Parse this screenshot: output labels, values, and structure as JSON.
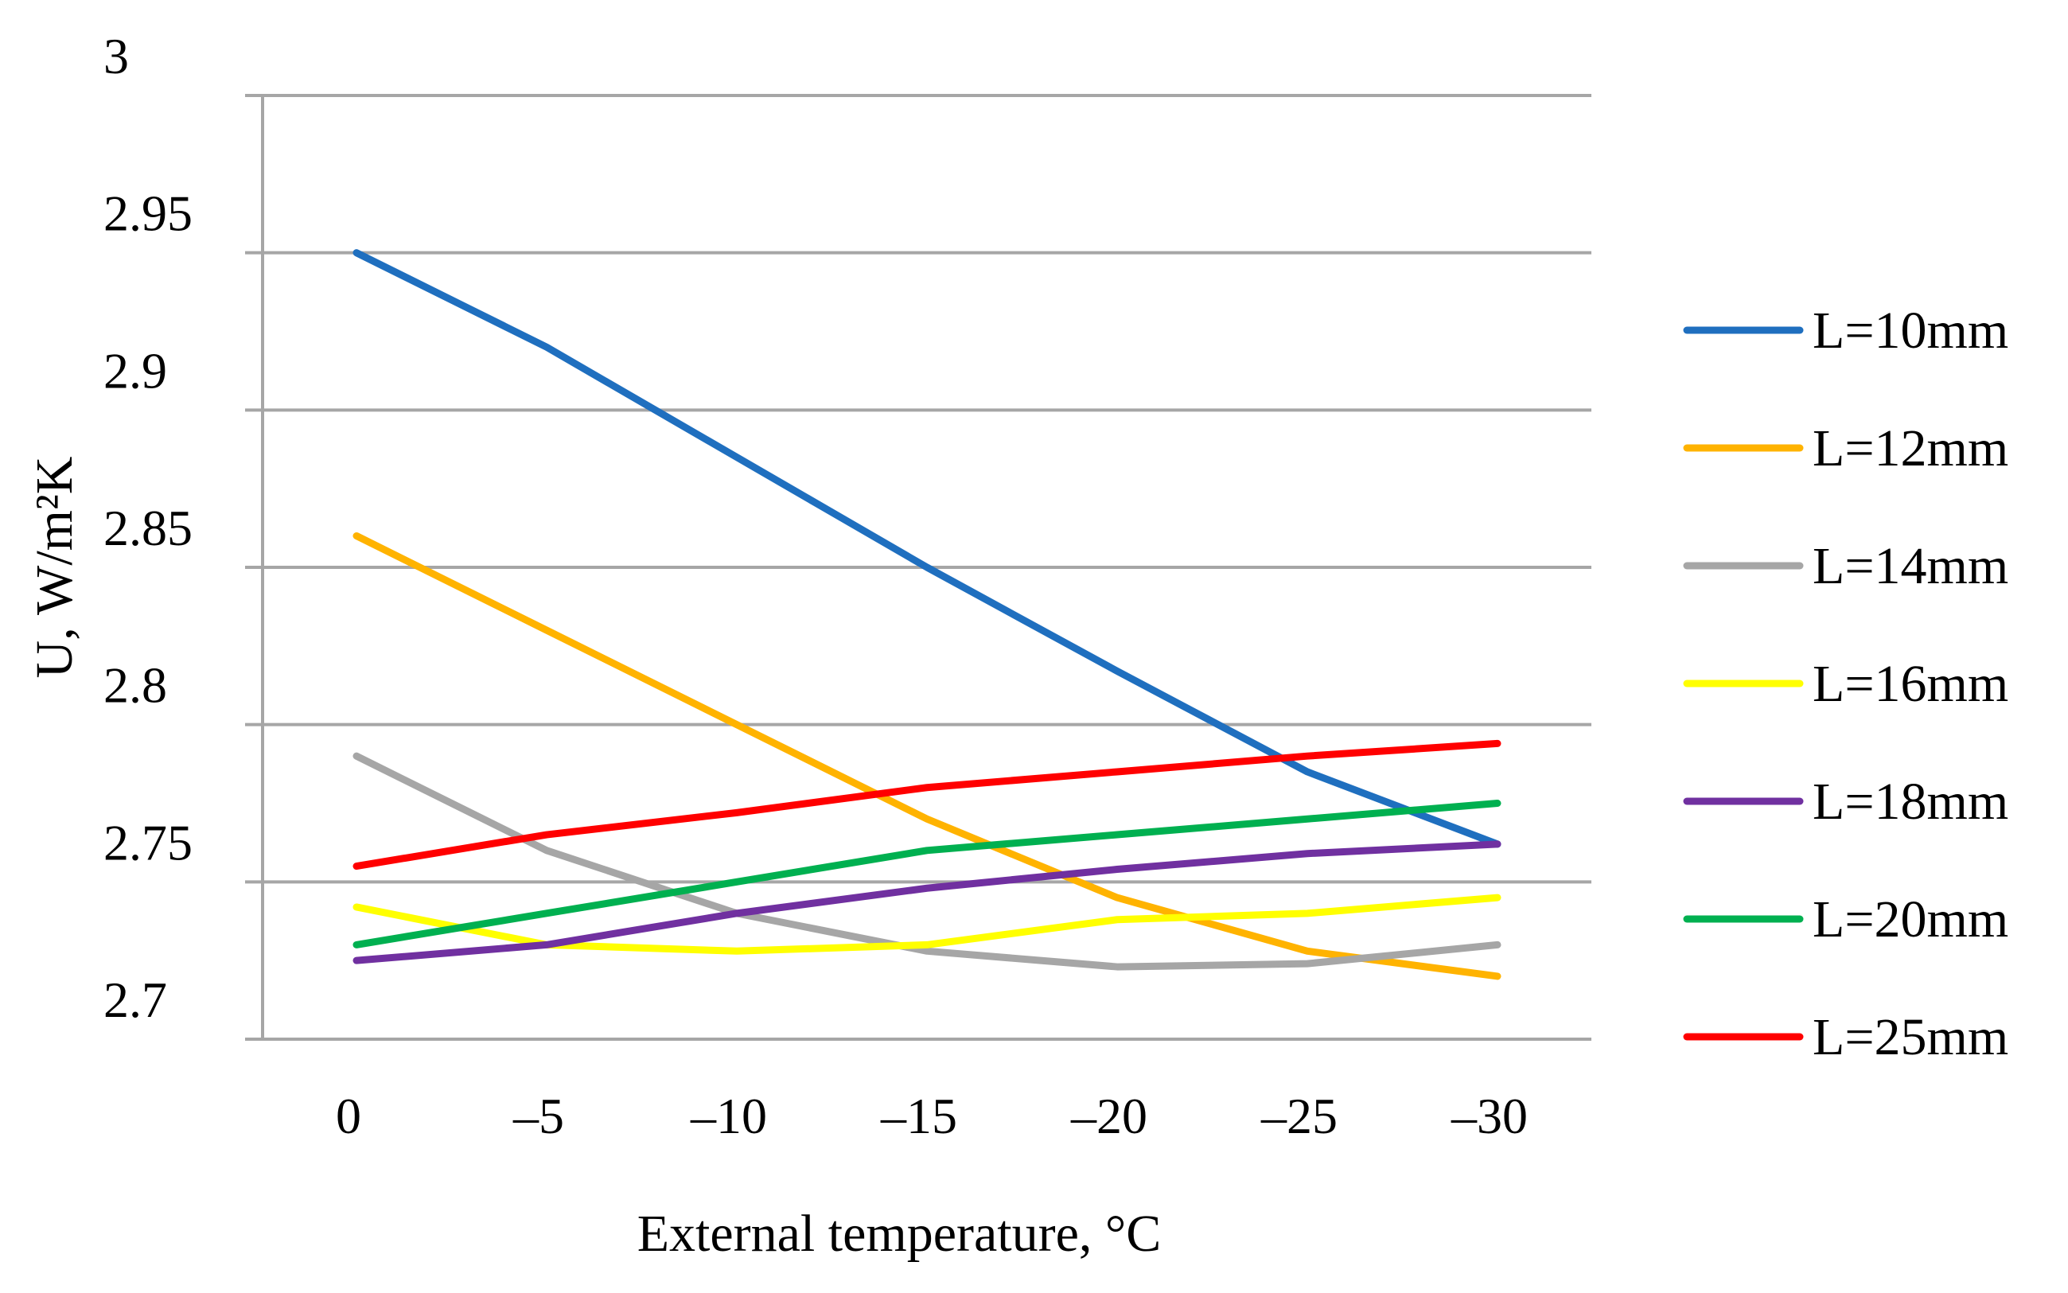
{
  "chart_data": {
    "type": "line",
    "title": "",
    "xlabel": "External temperature, °C",
    "ylabel": "U, W/m²K",
    "x": [
      0,
      -5,
      -10,
      -15,
      -20,
      -25,
      -30
    ],
    "x_tick_labels": [
      "0",
      "–5",
      "–10",
      "–15",
      "–20",
      "–25",
      "–30"
    ],
    "ylim": [
      2.7,
      3.0
    ],
    "y_ticks": [
      2.7,
      2.75,
      2.8,
      2.85,
      2.9,
      2.95,
      3.0
    ],
    "y_tick_labels": [
      "2.7",
      "2.75",
      "2.8",
      "2.85",
      "2.9",
      "2.95",
      "3"
    ],
    "grid": "horizontal",
    "legend_position": "right",
    "series": [
      {
        "name": "L=10mm",
        "color": "#1f6fbf",
        "values": [
          2.95,
          2.92,
          2.885,
          2.85,
          2.817,
          2.785,
          2.762
        ]
      },
      {
        "name": "L=12mm",
        "color": "#ffb300",
        "values": [
          2.86,
          2.83,
          2.8,
          2.77,
          2.745,
          2.728,
          2.72
        ]
      },
      {
        "name": "L=14mm",
        "color": "#a6a6a6",
        "values": [
          2.79,
          2.76,
          2.74,
          2.728,
          2.723,
          2.724,
          2.73
        ]
      },
      {
        "name": "L=16mm",
        "color": "#ffff00",
        "values": [
          2.742,
          2.73,
          2.728,
          2.73,
          2.738,
          2.74,
          2.745
        ]
      },
      {
        "name": "L=18mm",
        "color": "#7030a0",
        "values": [
          2.725,
          2.73,
          2.74,
          2.748,
          2.754,
          2.759,
          2.762
        ]
      },
      {
        "name": "L=20mm",
        "color": "#00b050",
        "values": [
          2.73,
          2.74,
          2.75,
          2.76,
          2.765,
          2.77,
          2.775
        ]
      },
      {
        "name": "L=25mm",
        "color": "#ff0000",
        "values": [
          2.755,
          2.765,
          2.772,
          2.78,
          2.785,
          2.79,
          2.794
        ]
      }
    ]
  }
}
